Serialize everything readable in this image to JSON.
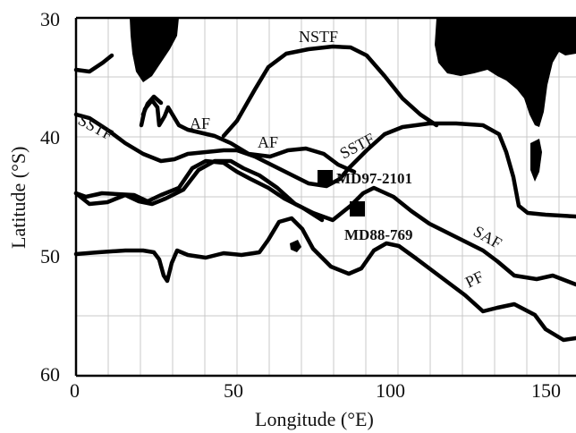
{
  "axes": {
    "x_title": "Longitude (°E)",
    "y_title": "Latitude (°S)",
    "x_ticks": [
      "0",
      "50",
      "100",
      "150"
    ],
    "y_ticks": [
      "30",
      "40",
      "50",
      "60"
    ],
    "xlim": [
      0,
      155
    ],
    "ylim": [
      30,
      60
    ]
  },
  "fronts": {
    "nstf": "NSTF",
    "sstf_west": "SSTF",
    "sstf_east": "SSTF",
    "af_west": "AF",
    "af_east": "AF",
    "saf": "SAF",
    "pf": "PF"
  },
  "cores": {
    "md97": "MD97-2101",
    "md88": "MD88-769"
  },
  "colors": {
    "front_line": "#000000",
    "land": "#000000",
    "grid": "#c9c9c9"
  }
}
